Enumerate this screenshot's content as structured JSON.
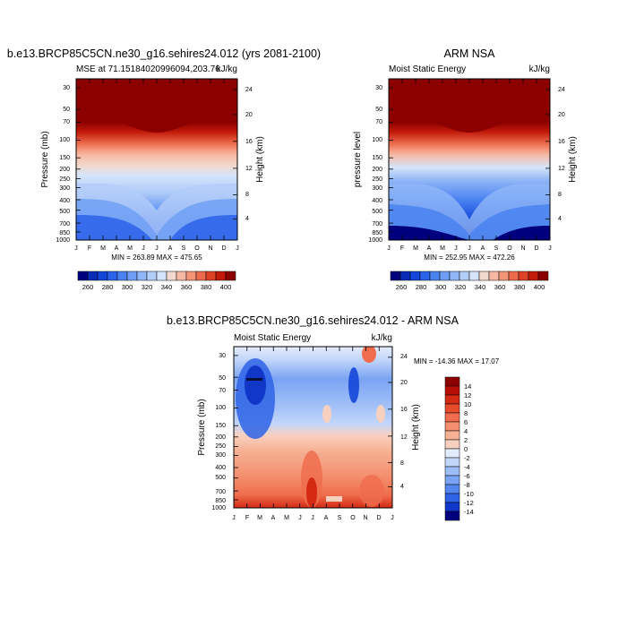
{
  "chart_data": [
    {
      "type": "heatmap",
      "title": "b.e13.BRCP85C5CN.ne30_g16.sehires24.012 (yrs 2081-2100)",
      "subtitle_left": "MSE at 71.15184020996094,203.76",
      "subtitle_right": "kJ/kg",
      "ylabel": "Pressure (mb)",
      "ylabel_right": "Height (km)",
      "months": [
        "J",
        "F",
        "M",
        "A",
        "M",
        "J",
        "J",
        "A",
        "S",
        "O",
        "N",
        "D",
        "J"
      ],
      "pressure_ticks": [
        "30",
        "50",
        "70",
        "100",
        "150",
        "200",
        "250",
        "300",
        "400",
        "500",
        "700",
        "850",
        "1000"
      ],
      "height_ticks": [
        "24",
        "20",
        "16",
        "12",
        "8",
        "4"
      ],
      "stats": "MIN = 263.89 MAX = 475.65",
      "min": 263.89,
      "max": 475.65
    },
    {
      "type": "heatmap",
      "title": "ARM NSA",
      "subtitle_left": "Moist Static Energy",
      "subtitle_right": "kJ/kg",
      "ylabel": "pressure level",
      "ylabel_right": "Height (km)",
      "months": [
        "J",
        "F",
        "M",
        "A",
        "M",
        "J",
        "J",
        "A",
        "S",
        "O",
        "N",
        "D",
        "J"
      ],
      "pressure_ticks": [
        "30",
        "50",
        "70",
        "100",
        "150",
        "200",
        "250",
        "300",
        "400",
        "500",
        "700",
        "850",
        "1000"
      ],
      "height_ticks": [
        "24",
        "20",
        "16",
        "12",
        "8",
        "4"
      ],
      "stats": "MIN = 252.95 MAX = 472.26",
      "min": 252.95,
      "max": 472.26
    },
    {
      "type": "heatmap",
      "title": "b.e13.BRCP85C5CN.ne30_g16.sehires24.012 - ARM NSA",
      "subtitle_left": "Moist Static Energy",
      "subtitle_right": "kJ/kg",
      "ylabel": "Pressure (mb)",
      "ylabel_right": "Height (km)",
      "months": [
        "J",
        "F",
        "M",
        "A",
        "M",
        "J",
        "J",
        "A",
        "S",
        "O",
        "N",
        "D",
        "J"
      ],
      "pressure_ticks": [
        "30",
        "50",
        "70",
        "100",
        "150",
        "200",
        "250",
        "300",
        "400",
        "500",
        "700",
        "850",
        "1000"
      ],
      "height_ticks": [
        "24",
        "20",
        "16",
        "12",
        "8",
        "4"
      ],
      "stats": "MIN = -14.36 MAX =  17.07",
      "min": -14.36,
      "max": 17.07
    }
  ],
  "colorbar_mse": {
    "labels": [
      "260",
      "280",
      "300",
      "320",
      "340",
      "360",
      "380",
      "400"
    ],
    "colors": [
      "#00007f",
      "#0a2bb5",
      "#1446d9",
      "#2b63ea",
      "#4a82f0",
      "#6d9df4",
      "#90b6f7",
      "#b3cdf9",
      "#d5e4fb",
      "#f2d9cf",
      "#f7b9a3",
      "#f49577",
      "#ec6b4d",
      "#dd4126",
      "#c21b0a",
      "#8c0000"
    ]
  },
  "colorbar_diff": {
    "labels": [
      "14",
      "12",
      "10",
      "8",
      "6",
      "4",
      "2",
      "0",
      "-2",
      "-4",
      "-6",
      "-8",
      "-10",
      "-12",
      "-14"
    ],
    "colors": [
      "#8c0000",
      "#b50f06",
      "#d42a14",
      "#e64b2c",
      "#ef6d4d",
      "#f4906f",
      "#f6b093",
      "#f8d0bf",
      "#e3ecfc",
      "#c2d6fa",
      "#9dbdf6",
      "#7aa3f3",
      "#5586ef",
      "#2e63e6",
      "#1037c7",
      "#00007f"
    ]
  }
}
